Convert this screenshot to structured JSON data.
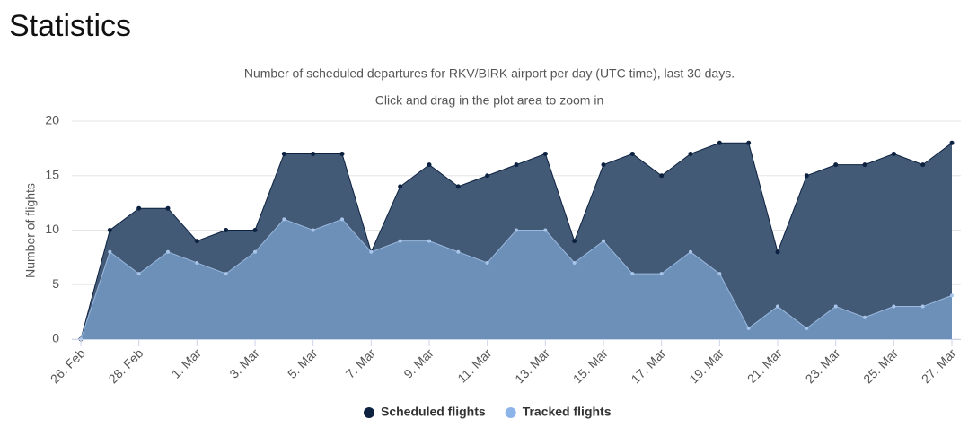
{
  "chart_data": {
    "type": "area",
    "title": "Statistics",
    "subtitle": "Number of scheduled departures for RKV/BIRK airport per day (UTC time), last 30 days.",
    "annotation": "Click and drag in the plot area to zoom in",
    "y_label": "Number of flights",
    "categories": [
      "26. Feb",
      null,
      "28. Feb",
      null,
      "1. Mar",
      null,
      "3. Mar",
      null,
      "5. Mar",
      null,
      "7. Mar",
      null,
      "9. Mar",
      null,
      "11. Mar",
      null,
      "13. Mar",
      null,
      "15. Mar",
      null,
      "17. Mar",
      null,
      "19. Mar",
      null,
      "21. Mar",
      null,
      "23. Mar",
      null,
      "25. Mar",
      null,
      "27. Mar"
    ],
    "series": [
      {
        "name": "Scheduled flights",
        "color": "#0d2240",
        "fill": "#435a76",
        "values": [
          0,
          10,
          12,
          12,
          9,
          10,
          10,
          17,
          17,
          17,
          8,
          14,
          16,
          14,
          15,
          16,
          17,
          9,
          16,
          17,
          15,
          17,
          18,
          18,
          8,
          15,
          16,
          16,
          17,
          16,
          18
        ]
      },
      {
        "name": "Tracked flights",
        "color": "#8db4e8",
        "fill": "#6d90b9",
        "values": [
          0,
          8,
          6,
          8,
          7,
          6,
          8,
          11,
          10,
          11,
          8,
          9,
          9,
          8,
          7,
          10,
          10,
          7,
          9,
          6,
          6,
          8,
          6,
          1,
          3,
          1,
          3,
          2,
          3,
          3,
          4
        ]
      }
    ],
    "ylim": [
      0,
      20
    ],
    "yticks": [
      0,
      5,
      10,
      15,
      20
    ],
    "grid": true,
    "legend": "bottom"
  }
}
